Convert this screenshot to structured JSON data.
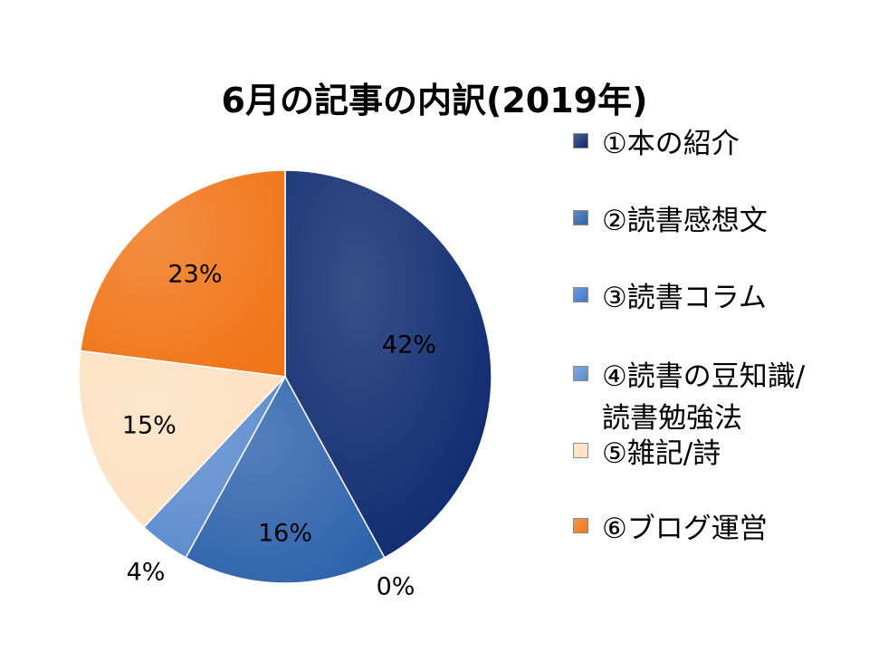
{
  "chart_data": {
    "type": "pie",
    "title": "6月の記事の内訳(2019年)",
    "categories": [
      "①本の紹介",
      "②読書感想文",
      "③読書コラム",
      "④読書の豆知識/読書勉強法",
      "⑤雑記/詩",
      "⑥ブログ運営"
    ],
    "legend_lines": [
      [
        "①本の紹介"
      ],
      [
        "②読書感想文"
      ],
      [
        "③読書コラム"
      ],
      [
        "④読書の豆知識/",
        "読書勉強法"
      ],
      [
        "⑤雑記/詩"
      ],
      [
        "⑥ブログ運営"
      ]
    ],
    "values": [
      42,
      16,
      0,
      4,
      15,
      23
    ],
    "value_labels": [
      "42%",
      "16%",
      "0%",
      "4%",
      "15%",
      "23%"
    ],
    "colors": [
      "#0E2A6E",
      "#2F63AC",
      "#3D78CB",
      "#5B8BCD",
      "#FDE0C1",
      "#F07518"
    ],
    "legend_position": "right"
  }
}
